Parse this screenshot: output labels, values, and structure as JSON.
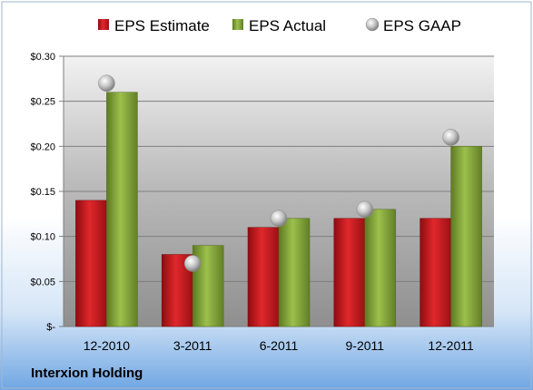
{
  "company": "Interxion Holding",
  "colors": {
    "estimate": "#c0151b",
    "actual": "#86a83c",
    "gaap": "#b4b4b4"
  },
  "chart_data": {
    "type": "bar",
    "categories": [
      "12-2010",
      "3-2011",
      "6-2011",
      "9-2011",
      "12-2011"
    ],
    "series": [
      {
        "name": "EPS Estimate",
        "kind": "bar",
        "values": [
          0.14,
          0.08,
          0.11,
          0.12,
          0.12
        ]
      },
      {
        "name": "EPS Actual",
        "kind": "bar",
        "values": [
          0.26,
          0.09,
          0.12,
          0.13,
          0.2
        ]
      },
      {
        "name": "EPS GAAP",
        "kind": "scatter",
        "values": [
          0.27,
          0.07,
          0.12,
          0.13,
          0.21
        ]
      }
    ],
    "ylim": [
      0,
      0.3
    ],
    "yticks": [
      0,
      0.05,
      0.1,
      0.15,
      0.2,
      0.25,
      0.3
    ],
    "ytick_labels": [
      "$-",
      "$0.05",
      "$0.10",
      "$0.15",
      "$0.20",
      "$0.25",
      "$0.30"
    ],
    "grid": true,
    "legend_position": "top"
  }
}
